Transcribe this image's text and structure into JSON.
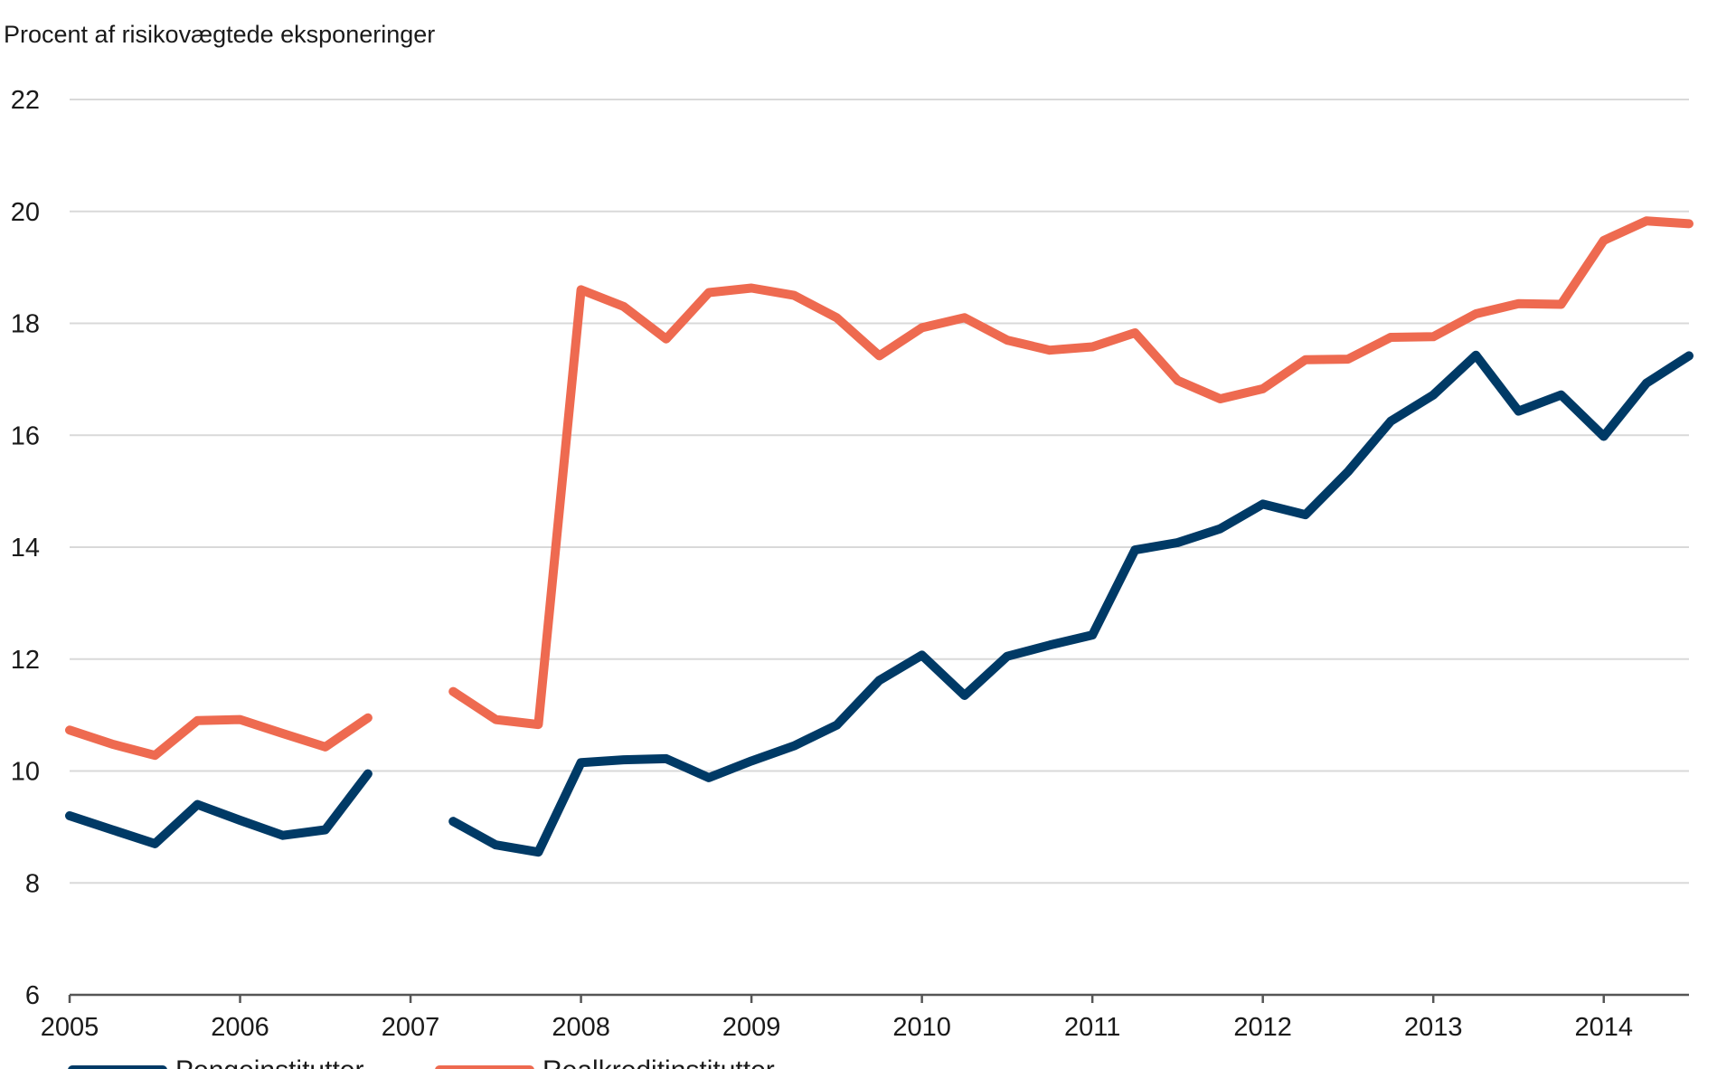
{
  "chart_data": {
    "type": "line",
    "title": "",
    "ylabel": "Procent af risikovægtede eksponeringer",
    "xlabel": "",
    "ylim": [
      6,
      22
    ],
    "yticks": [
      6,
      8,
      10,
      12,
      14,
      16,
      18,
      20,
      22
    ],
    "xlim": [
      2005,
      2014.5
    ],
    "xticks": [
      "2005",
      "2006",
      "2007",
      "2008",
      "2009",
      "2010",
      "2011",
      "2012",
      "2013",
      "2014"
    ],
    "grid": true,
    "legend": "bottom-left",
    "x": [
      2005.0,
      2005.25,
      2005.5,
      2005.75,
      2006.0,
      2006.25,
      2006.5,
      2006.75,
      2007.0,
      2007.25,
      2007.5,
      2007.75,
      2008.0,
      2008.25,
      2008.5,
      2008.75,
      2009.0,
      2009.25,
      2009.5,
      2009.75,
      2010.0,
      2010.25,
      2010.5,
      2010.75,
      2011.0,
      2011.25,
      2011.5,
      2011.75,
      2012.0,
      2012.25,
      2012.5,
      2012.75,
      2013.0,
      2013.25,
      2013.5,
      2013.75,
      2014.0,
      2014.25,
      2014.5
    ],
    "series": [
      {
        "name": "Pengeinstitutter",
        "color": "#003a66",
        "values": [
          9.2,
          8.95,
          8.7,
          9.4,
          9.12,
          8.85,
          8.95,
          9.95,
          null,
          9.1,
          8.68,
          8.55,
          10.15,
          10.2,
          10.22,
          9.88,
          10.18,
          10.45,
          10.82,
          11.62,
          12.07,
          11.35,
          12.05,
          12.25,
          12.43,
          13.95,
          14.08,
          14.33,
          14.77,
          14.58,
          15.35,
          16.25,
          16.72,
          17.43,
          16.43,
          16.72,
          15.98,
          16.93,
          17.42
        ]
      },
      {
        "name": "Realkreditinstitutter",
        "color": "#ee6a50",
        "values": [
          10.73,
          10.48,
          10.28,
          10.9,
          10.92,
          10.67,
          10.43,
          10.95,
          null,
          11.42,
          10.92,
          10.83,
          18.6,
          18.3,
          17.72,
          18.55,
          18.63,
          18.5,
          18.1,
          17.42,
          17.92,
          18.1,
          17.7,
          17.52,
          17.58,
          17.83,
          16.98,
          16.65,
          16.83,
          17.35,
          17.36,
          17.75,
          17.76,
          18.17,
          18.35,
          18.34,
          19.48,
          19.83,
          19.78
        ]
      }
    ]
  }
}
